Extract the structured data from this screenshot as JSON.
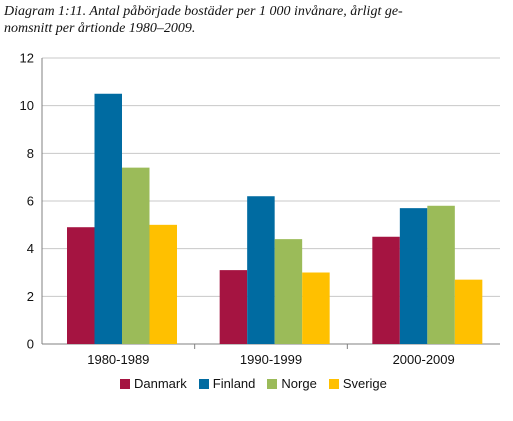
{
  "caption": {
    "line1": "Diagram 1:11. Antal påbörjade bostäder per 1 000 invånare, årligt ge-",
    "line2": "nomsnitt per årtionde 1980–2009."
  },
  "chart_data": {
    "type": "bar",
    "title": "Diagram 1:11. Antal påbörjade bostäder per 1 000 invånare, årligt genomsnitt per årtionde 1980–2009.",
    "categories": [
      "1980-1989",
      "1990-1999",
      "2000-2009"
    ],
    "series": [
      {
        "name": "Danmark",
        "color": "#a51441",
        "values": [
          4.9,
          3.1,
          4.5
        ]
      },
      {
        "name": "Finland",
        "color": "#006ba1",
        "values": [
          10.5,
          6.2,
          5.7
        ]
      },
      {
        "name": "Norge",
        "color": "#9bbb59",
        "values": [
          7.4,
          4.4,
          5.8
        ]
      },
      {
        "name": "Sverige",
        "color": "#ffc000",
        "values": [
          5.0,
          3.0,
          2.7
        ]
      }
    ],
    "ylim": [
      0,
      12
    ],
    "yticks": [
      0,
      2,
      4,
      6,
      8,
      10,
      12
    ],
    "grid": true,
    "legend": "bottom"
  }
}
